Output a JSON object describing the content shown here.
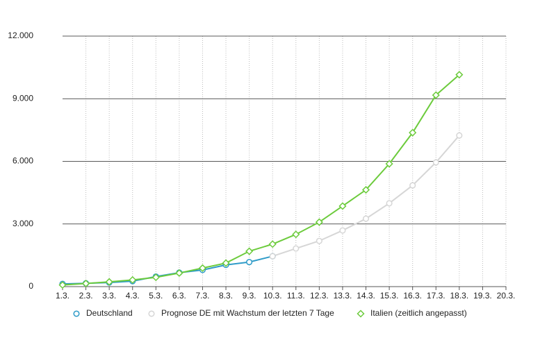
{
  "chart_data": {
    "type": "line",
    "categories": [
      "1.3.",
      "2.3.",
      "3.3.",
      "4.3.",
      "5.3.",
      "6.3.",
      "7.3.",
      "8.3.",
      "9.3.",
      "10.3.",
      "11.3.",
      "12.3.",
      "13.3.",
      "14.3.",
      "15.3.",
      "16.3.",
      "17.3.",
      "18.3.",
      "19.3.",
      "20.3."
    ],
    "series": [
      {
        "name": "Deutschland",
        "color": "#2e9bc8",
        "marker": "circle",
        "values": [
          130,
          159,
          196,
          262,
          482,
          670,
          799,
          1040,
          1176,
          1457,
          null,
          null,
          null,
          null,
          null,
          null,
          null,
          null,
          null,
          null
        ]
      },
      {
        "name": "Prognose DE mit Wachstum der letzten 7 Tage",
        "color": "#d6d6d6",
        "marker": "circle",
        "values": [
          null,
          null,
          null,
          null,
          null,
          null,
          null,
          null,
          null,
          1457,
          1827,
          2190,
          2690,
          3255,
          3990,
          4850,
          5950,
          7240,
          null,
          null
        ]
      },
      {
        "name": "Italien (zeitlich angepasst)",
        "color": "#6ccb3c",
        "marker": "diamond",
        "values": [
          79,
          150,
          227,
          320,
          445,
          650,
          888,
          1128,
          1694,
          2036,
          2502,
          3089,
          3858,
          4636,
          5883,
          7375,
          9172,
          10149,
          null,
          null
        ]
      }
    ],
    "ylim": [
      0,
      12000
    ],
    "yticks": [
      0,
      {
        "value": 3000,
        "label": "3.000"
      },
      {
        "value": 6000,
        "label": "6.000"
      },
      {
        "value": 9000,
        "label": "9.000"
      },
      {
        "value": 12000,
        "label": "12.000"
      }
    ],
    "grid": true,
    "legend": "bottom"
  }
}
